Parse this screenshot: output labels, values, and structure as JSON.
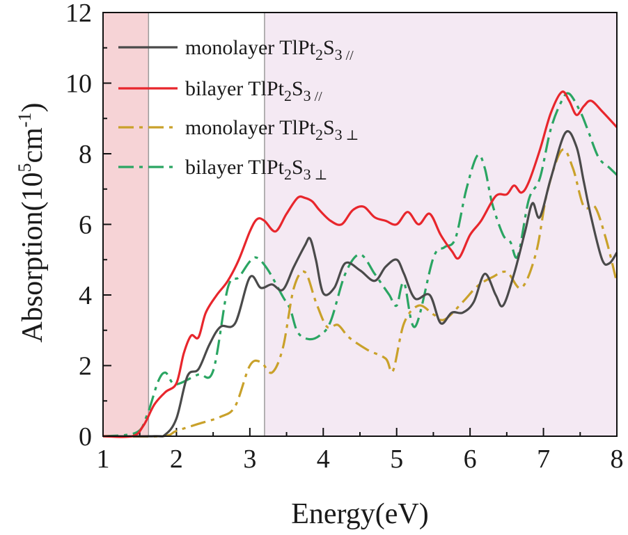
{
  "chart_data": {
    "type": "line",
    "xlabel": "Energy(eV)",
    "ylabel": {
      "prefix": "Absorption(10",
      "exp1": "5",
      "mid": "cm",
      "exp2": "-1",
      "suffix": ")"
    },
    "xlim": [
      1,
      8
    ],
    "ylim": [
      0,
      12
    ],
    "xticks": [
      1,
      2,
      3,
      4,
      5,
      6,
      7,
      8
    ],
    "yticks": [
      0,
      2,
      4,
      6,
      8,
      10,
      12
    ],
    "regions": [
      {
        "name": "red-shaded-region",
        "x0": 1.0,
        "x1": 1.62,
        "color": "#f6d3d6"
      },
      {
        "name": "violet-shaded-region",
        "x0": 3.2,
        "x1": 8.0,
        "color": "#f4e9f3"
      }
    ],
    "series": [
      {
        "name": "monolayer TlPt2S3 //",
        "legend": {
          "main": "monolayer TlPt",
          "sub1": "2",
          "mid": "S",
          "sub2": "3",
          "suffix": " //"
        },
        "color": "#4a4a4a",
        "dash": "",
        "x": [
          1.0,
          1.7,
          1.85,
          2.0,
          2.15,
          2.3,
          2.45,
          2.6,
          2.8,
          3.0,
          3.15,
          3.3,
          3.45,
          3.6,
          3.75,
          3.82,
          3.9,
          4.0,
          4.15,
          4.3,
          4.5,
          4.7,
          4.85,
          5.0,
          5.1,
          5.25,
          5.45,
          5.6,
          5.75,
          5.9,
          6.05,
          6.2,
          6.35,
          6.45,
          6.6,
          6.75,
          6.85,
          6.95,
          7.1,
          7.3,
          7.45,
          7.55,
          7.65,
          7.8,
          7.9,
          8.0
        ],
        "y": [
          0,
          0,
          0.05,
          0.5,
          1.7,
          1.9,
          2.6,
          3.1,
          3.2,
          4.5,
          4.2,
          4.3,
          4.15,
          4.8,
          5.4,
          5.6,
          5.0,
          4.05,
          4.2,
          4.9,
          4.7,
          4.4,
          4.8,
          5.0,
          4.6,
          3.9,
          4.0,
          3.2,
          3.5,
          3.5,
          3.8,
          4.6,
          4.0,
          3.7,
          4.6,
          5.8,
          6.6,
          6.2,
          7.3,
          8.6,
          8.2,
          7.2,
          6.2,
          5.0,
          4.9,
          5.2
        ]
      },
      {
        "name": "bilayer TlPt2S3 //",
        "legend": {
          "main": "bilayer TlPt",
          "sub1": "2",
          "mid": "S",
          "sub2": "3",
          "suffix": " //"
        },
        "color": "#e8262c",
        "dash": "",
        "x": [
          1.0,
          1.4,
          1.55,
          1.7,
          1.85,
          2.0,
          2.1,
          2.2,
          2.3,
          2.4,
          2.55,
          2.7,
          2.85,
          3.0,
          3.1,
          3.2,
          3.35,
          3.5,
          3.65,
          3.75,
          3.85,
          3.95,
          4.1,
          4.25,
          4.4,
          4.55,
          4.7,
          4.85,
          5.0,
          5.15,
          5.3,
          5.45,
          5.6,
          5.75,
          5.85,
          6.0,
          6.15,
          6.35,
          6.5,
          6.6,
          6.7,
          6.8,
          6.95,
          7.1,
          7.25,
          7.35,
          7.45,
          7.55,
          7.65,
          7.8,
          8.0
        ],
        "y": [
          0,
          0,
          0.3,
          0.9,
          1.25,
          1.5,
          2.35,
          2.85,
          2.8,
          3.5,
          4.0,
          4.4,
          5.0,
          5.8,
          6.15,
          6.1,
          5.8,
          6.3,
          6.75,
          6.75,
          6.65,
          6.4,
          6.1,
          6.0,
          6.4,
          6.5,
          6.2,
          6.1,
          6.0,
          6.35,
          6.0,
          6.3,
          5.7,
          5.25,
          5.05,
          5.7,
          6.1,
          6.8,
          6.85,
          7.1,
          6.9,
          7.2,
          8.1,
          9.15,
          9.75,
          9.5,
          9.1,
          9.35,
          9.5,
          9.2,
          8.75
        ]
      },
      {
        "name": "monolayer TlPt2S3 ⊥",
        "legend": {
          "main": "monolayer TlPt",
          "sub1": "2",
          "mid": "S",
          "sub2": "3",
          "suffix": " ⊥"
        },
        "color": "#c9a12a",
        "dash": "22,8,5,8",
        "x": [
          1.0,
          1.8,
          2.0,
          2.3,
          2.6,
          2.8,
          3.0,
          3.15,
          3.3,
          3.45,
          3.6,
          3.75,
          3.9,
          4.05,
          4.2,
          4.35,
          4.6,
          4.85,
          4.95,
          5.1,
          5.3,
          5.5,
          5.65,
          5.9,
          6.1,
          6.3,
          6.5,
          6.7,
          6.9,
          7.05,
          7.25,
          7.4,
          7.55,
          7.7,
          7.85,
          8.0
        ],
        "y": [
          0,
          0,
          0.15,
          0.35,
          0.55,
          0.85,
          2.0,
          2.1,
          1.8,
          2.5,
          4.2,
          4.65,
          3.8,
          3.1,
          3.15,
          2.8,
          2.45,
          2.2,
          1.85,
          3.2,
          3.7,
          3.45,
          3.3,
          3.8,
          4.25,
          4.5,
          4.65,
          4.2,
          5.2,
          6.9,
          8.1,
          7.6,
          6.5,
          6.5,
          5.6,
          4.35
        ]
      },
      {
        "name": "bilayer TlPt2S3 ⊥",
        "legend": {
          "main": "bilayer TlPt",
          "sub1": "2",
          "mid": "S",
          "sub2": "3",
          "suffix": " ⊥"
        },
        "color": "#2aa562",
        "dash": "22,8,5,8",
        "x": [
          1.0,
          1.45,
          1.6,
          1.75,
          1.85,
          1.95,
          2.05,
          2.3,
          2.5,
          2.7,
          2.85,
          3.0,
          3.1,
          3.25,
          3.45,
          3.55,
          3.65,
          3.8,
          3.95,
          4.1,
          4.3,
          4.5,
          4.7,
          4.8,
          4.9,
          5.0,
          5.1,
          5.25,
          5.5,
          5.65,
          5.8,
          5.95,
          6.1,
          6.2,
          6.3,
          6.45,
          6.55,
          6.65,
          6.8,
          6.95,
          7.1,
          7.25,
          7.35,
          7.5,
          7.6,
          7.75,
          7.9,
          8.0
        ],
        "y": [
          0,
          0.1,
          0.6,
          1.55,
          1.8,
          1.5,
          1.5,
          1.75,
          1.85,
          4.2,
          4.5,
          4.95,
          5.05,
          4.7,
          3.95,
          3.6,
          2.95,
          2.75,
          2.85,
          3.25,
          4.6,
          5.15,
          4.6,
          4.3,
          4.0,
          3.7,
          4.35,
          3.1,
          5.05,
          5.35,
          5.6,
          7.0,
          7.95,
          7.6,
          6.6,
          5.7,
          5.5,
          5.1,
          6.7,
          7.3,
          8.7,
          9.5,
          9.7,
          9.2,
          8.7,
          7.9,
          7.6,
          7.4
        ]
      }
    ]
  }
}
